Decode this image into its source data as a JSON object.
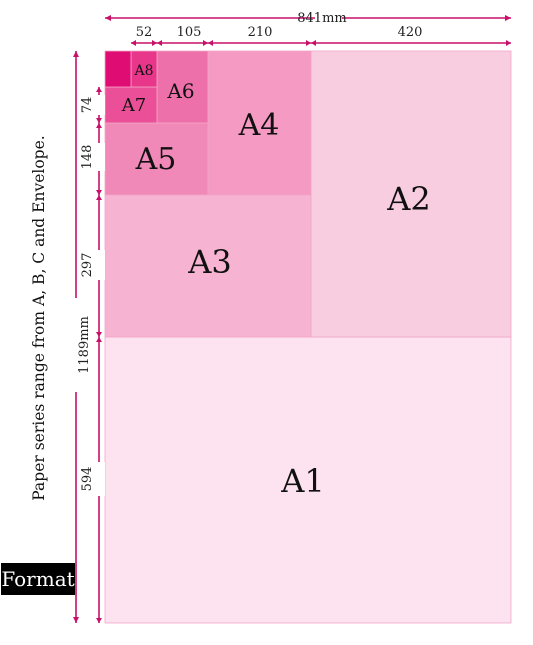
{
  "sheets": [
    {
      "key": "a1",
      "label": "A1",
      "color": "#fde3ef"
    },
    {
      "key": "a2",
      "label": "A2",
      "color": "#f9cde0"
    },
    {
      "key": "a3",
      "label": "A3",
      "color": "#f7b4d2"
    },
    {
      "key": "a4",
      "label": "A4",
      "color": "#f49ac3"
    },
    {
      "key": "a5",
      "label": "A5",
      "color": "#f088b8"
    },
    {
      "key": "a6",
      "label": "A6",
      "color": "#ee70aa"
    },
    {
      "key": "a7",
      "label": "A7",
      "color": "#eb4f97"
    },
    {
      "key": "a8",
      "label": "A8",
      "color": "#e8368a"
    },
    {
      "key": "a9",
      "label": "",
      "color": "#df0c74"
    }
  ],
  "dimensions": {
    "total_width": "841mm",
    "total_height": "1189mm",
    "widths": [
      "52",
      "105",
      "210",
      "420"
    ],
    "heights": [
      "74",
      "148",
      "297",
      "594"
    ]
  },
  "accent_color": "#c8106a",
  "side_caption": "Paper series range from A, B, C and Envelope.",
  "badge": "Format"
}
